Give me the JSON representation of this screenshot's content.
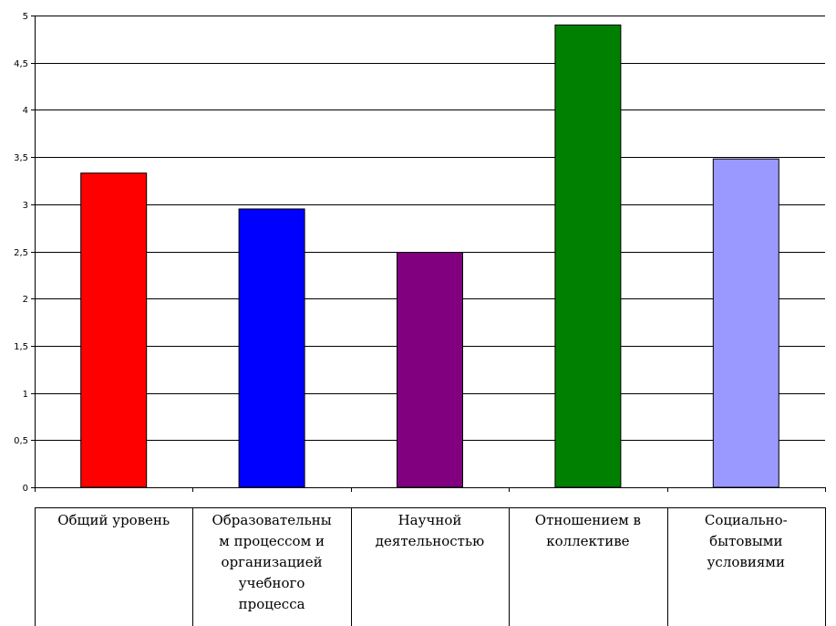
{
  "chart_data": {
    "type": "bar",
    "title": "",
    "xlabel": "",
    "ylabel": "",
    "ylim": [
      0,
      5
    ],
    "y_ticks": [
      "0",
      "0,5",
      "1",
      "1,5",
      "2",
      "2,5",
      "3",
      "3,5",
      "4",
      "4,5",
      "5"
    ],
    "grid": true,
    "categories": [
      [
        "Общий уровень"
      ],
      [
        "Образовательны",
        "м процессом и",
        "организацией",
        "учебного",
        "процесса"
      ],
      [
        "Научной",
        "деятельностью"
      ],
      [
        "Отношением в",
        "коллективе"
      ],
      [
        "Социально-",
        "бытовыми",
        "условиями"
      ]
    ],
    "values": [
      3.33,
      2.95,
      2.49,
      4.9,
      3.48
    ],
    "colors": [
      "#ff0000",
      "#0000ff",
      "#800080",
      "#008000",
      "#9999ff"
    ]
  }
}
